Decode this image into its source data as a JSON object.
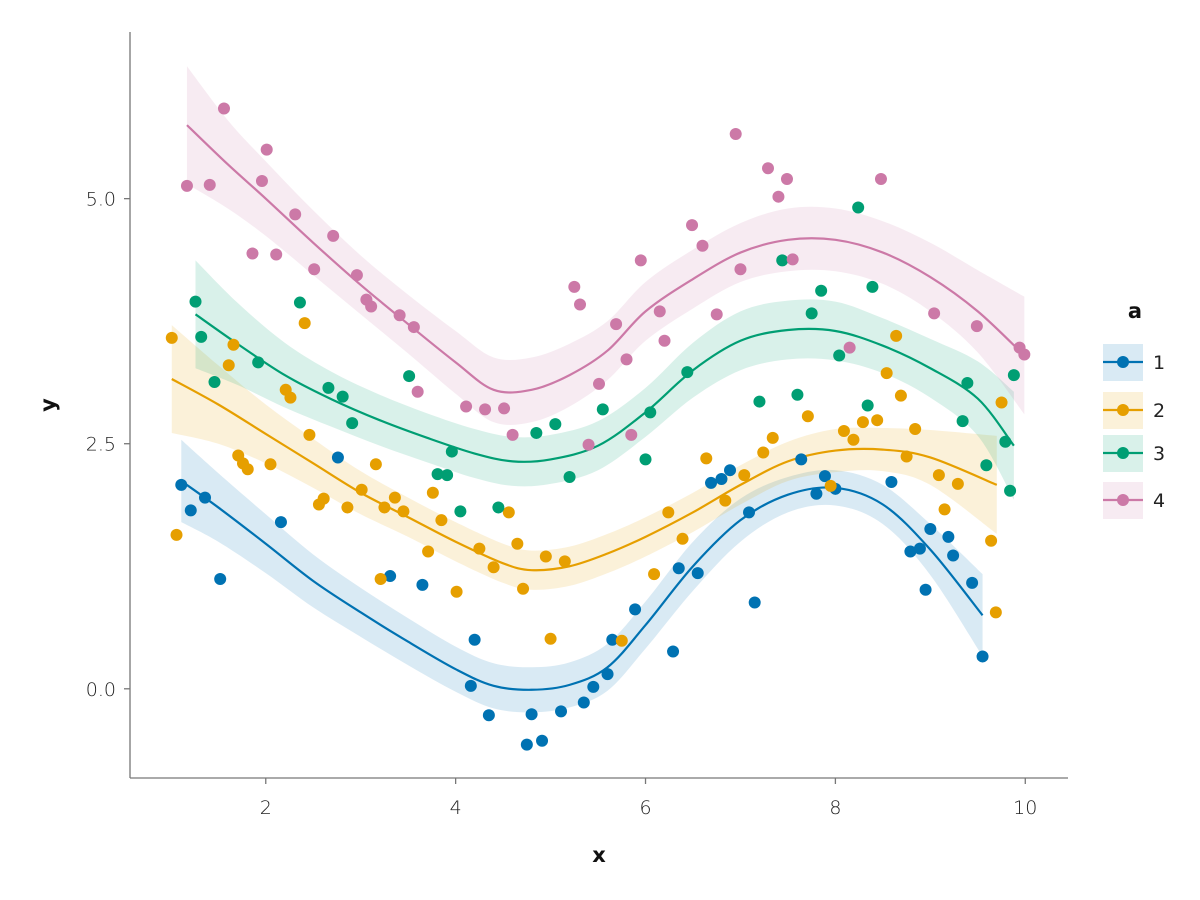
{
  "chart_data": {
    "type": "scatter",
    "title": "",
    "xlabel": "x",
    "ylabel": "y",
    "xlim": [
      0.57,
      10.45
    ],
    "ylim": [
      -0.91,
      6.7
    ],
    "xticks": [
      2,
      4,
      6,
      8,
      10
    ],
    "xtick_labels": [
      "2",
      "4",
      "6",
      "8",
      "10"
    ],
    "yticks": [
      0,
      2.5,
      5
    ],
    "ytick_labels": [
      "0.0",
      "2.5",
      "5.0"
    ],
    "grid": false,
    "legend": {
      "title": "a",
      "placement": "right"
    },
    "series": [
      {
        "name": "1",
        "color": "#0072B2",
        "points": [
          [
            1.11,
            2.08
          ],
          [
            1.21,
            1.82
          ],
          [
            1.36,
            1.95
          ],
          [
            1.52,
            1.12
          ],
          [
            2.16,
            1.7
          ],
          [
            2.76,
            2.36
          ],
          [
            3.31,
            1.15
          ],
          [
            3.65,
            1.06
          ],
          [
            4.16,
            0.03
          ],
          [
            4.2,
            0.5
          ],
          [
            4.35,
            -0.27
          ],
          [
            4.75,
            -0.57
          ],
          [
            4.8,
            -0.26
          ],
          [
            4.91,
            -0.53
          ],
          [
            5.11,
            -0.23
          ],
          [
            5.35,
            -0.14
          ],
          [
            5.45,
            0.02
          ],
          [
            5.6,
            0.15
          ],
          [
            5.65,
            0.5
          ],
          [
            5.89,
            0.81
          ],
          [
            6.29,
            0.38
          ],
          [
            6.35,
            1.23
          ],
          [
            6.55,
            1.18
          ],
          [
            6.69,
            2.1
          ],
          [
            6.8,
            2.14
          ],
          [
            6.89,
            2.23
          ],
          [
            7.09,
            1.8
          ],
          [
            7.15,
            0.88
          ],
          [
            7.64,
            2.34
          ],
          [
            7.8,
            1.99
          ],
          [
            7.89,
            2.17
          ],
          [
            8.0,
            2.04
          ],
          [
            8.59,
            2.11
          ],
          [
            8.79,
            1.4
          ],
          [
            8.89,
            1.43
          ],
          [
            8.95,
            1.01
          ],
          [
            9.0,
            1.63
          ],
          [
            9.19,
            1.55
          ],
          [
            9.24,
            1.36
          ],
          [
            9.44,
            1.08
          ],
          [
            9.55,
            0.33
          ]
        ],
        "smooth": [
          [
            1.11,
            2.12
          ],
          [
            1.5,
            1.85
          ],
          [
            2,
            1.48
          ],
          [
            2.5,
            1.1
          ],
          [
            3,
            0.78
          ],
          [
            3.5,
            0.48
          ],
          [
            4,
            0.2
          ],
          [
            4.4,
            0.03
          ],
          [
            4.8,
            -0.01
          ],
          [
            5.2,
            0.04
          ],
          [
            5.6,
            0.22
          ],
          [
            6,
            0.65
          ],
          [
            6.5,
            1.25
          ],
          [
            7,
            1.72
          ],
          [
            7.5,
            1.98
          ],
          [
            8,
            2.05
          ],
          [
            8.5,
            1.88
          ],
          [
            9,
            1.42
          ],
          [
            9.55,
            0.75
          ]
        ],
        "ci": [
          0.42,
          0.35,
          0.3,
          0.27,
          0.25,
          0.24,
          0.23,
          0.23,
          0.23,
          0.23,
          0.24,
          0.24,
          0.25,
          0.22,
          0.18,
          0.18,
          0.2,
          0.26,
          0.42
        ]
      },
      {
        "name": "2",
        "color": "#E69F00",
        "points": [
          [
            1.01,
            3.58
          ],
          [
            1.06,
            1.57
          ],
          [
            1.61,
            3.3
          ],
          [
            1.66,
            3.51
          ],
          [
            1.71,
            2.38
          ],
          [
            1.76,
            2.3
          ],
          [
            1.81,
            2.24
          ],
          [
            2.05,
            2.29
          ],
          [
            2.21,
            3.05
          ],
          [
            2.26,
            2.97
          ],
          [
            2.41,
            3.73
          ],
          [
            2.46,
            2.59
          ],
          [
            2.56,
            1.88
          ],
          [
            2.61,
            1.94
          ],
          [
            2.86,
            1.85
          ],
          [
            3.01,
            2.03
          ],
          [
            3.16,
            2.29
          ],
          [
            3.21,
            1.12
          ],
          [
            3.25,
            1.85
          ],
          [
            3.36,
            1.95
          ],
          [
            3.45,
            1.81
          ],
          [
            3.71,
            1.4
          ],
          [
            3.76,
            2.0
          ],
          [
            3.85,
            1.72
          ],
          [
            4.01,
            0.99
          ],
          [
            4.25,
            1.43
          ],
          [
            4.4,
            1.24
          ],
          [
            4.56,
            1.8
          ],
          [
            4.65,
            1.48
          ],
          [
            4.71,
            1.02
          ],
          [
            4.95,
            1.35
          ],
          [
            5.0,
            0.51
          ],
          [
            5.15,
            1.3
          ],
          [
            5.75,
            0.49
          ],
          [
            6.09,
            1.17
          ],
          [
            6.24,
            1.8
          ],
          [
            6.39,
            1.53
          ],
          [
            6.64,
            2.35
          ],
          [
            6.84,
            1.92
          ],
          [
            7.04,
            2.18
          ],
          [
            7.24,
            2.41
          ],
          [
            7.34,
            2.56
          ],
          [
            7.71,
            2.78
          ],
          [
            7.95,
            2.07
          ],
          [
            8.09,
            2.63
          ],
          [
            8.19,
            2.54
          ],
          [
            8.29,
            2.72
          ],
          [
            8.44,
            2.74
          ],
          [
            8.54,
            3.22
          ],
          [
            8.64,
            3.6
          ],
          [
            8.69,
            2.99
          ],
          [
            8.75,
            2.37
          ],
          [
            8.84,
            2.65
          ],
          [
            9.09,
            2.18
          ],
          [
            9.15,
            1.83
          ],
          [
            9.29,
            2.09
          ],
          [
            9.64,
            1.51
          ],
          [
            9.69,
            0.78
          ],
          [
            9.75,
            2.92
          ]
        ],
        "smooth": [
          [
            1.01,
            3.16
          ],
          [
            1.5,
            2.9
          ],
          [
            2,
            2.6
          ],
          [
            2.5,
            2.3
          ],
          [
            3,
            2.0
          ],
          [
            3.5,
            1.75
          ],
          [
            4,
            1.5
          ],
          [
            4.5,
            1.28
          ],
          [
            4.8,
            1.21
          ],
          [
            5.2,
            1.25
          ],
          [
            5.6,
            1.38
          ],
          [
            6,
            1.55
          ],
          [
            6.5,
            1.8
          ],
          [
            7,
            2.08
          ],
          [
            7.5,
            2.32
          ],
          [
            8,
            2.43
          ],
          [
            8.5,
            2.44
          ],
          [
            9,
            2.36
          ],
          [
            9.7,
            2.08
          ]
        ],
        "ci": [
          0.55,
          0.4,
          0.3,
          0.25,
          0.22,
          0.2,
          0.2,
          0.2,
          0.2,
          0.2,
          0.2,
          0.2,
          0.2,
          0.2,
          0.2,
          0.22,
          0.22,
          0.28,
          0.5
        ]
      },
      {
        "name": "3",
        "color": "#009E73",
        "points": [
          [
            1.26,
            3.95
          ],
          [
            1.32,
            3.59
          ],
          [
            1.46,
            3.13
          ],
          [
            1.92,
            3.33
          ],
          [
            2.36,
            3.94
          ],
          [
            2.66,
            3.07
          ],
          [
            2.81,
            2.98
          ],
          [
            2.91,
            2.71
          ],
          [
            3.51,
            3.19
          ],
          [
            3.81,
            2.19
          ],
          [
            3.91,
            2.18
          ],
          [
            3.96,
            2.42
          ],
          [
            4.05,
            1.81
          ],
          [
            4.45,
            1.85
          ],
          [
            4.85,
            2.61
          ],
          [
            5.05,
            2.7
          ],
          [
            5.2,
            2.16
          ],
          [
            5.55,
            2.85
          ],
          [
            6.0,
            2.34
          ],
          [
            6.05,
            2.82
          ],
          [
            6.44,
            3.23
          ],
          [
            7.2,
            2.93
          ],
          [
            7.44,
            4.37
          ],
          [
            7.6,
            3.0
          ],
          [
            7.75,
            3.83
          ],
          [
            7.85,
            4.06
          ],
          [
            8.04,
            3.4
          ],
          [
            8.24,
            4.91
          ],
          [
            8.34,
            2.89
          ],
          [
            8.39,
            4.1
          ],
          [
            9.34,
            2.73
          ],
          [
            9.39,
            3.12
          ],
          [
            9.59,
            2.28
          ],
          [
            9.79,
            2.52
          ],
          [
            9.84,
            2.02
          ],
          [
            9.88,
            3.2
          ]
        ],
        "smooth": [
          [
            1.26,
            3.82
          ],
          [
            1.7,
            3.52
          ],
          [
            2.2,
            3.2
          ],
          [
            2.7,
            2.95
          ],
          [
            3.2,
            2.74
          ],
          [
            3.7,
            2.56
          ],
          [
            4.2,
            2.4
          ],
          [
            4.6,
            2.32
          ],
          [
            5,
            2.34
          ],
          [
            5.5,
            2.48
          ],
          [
            6,
            2.82
          ],
          [
            6.5,
            3.25
          ],
          [
            7,
            3.55
          ],
          [
            7.5,
            3.66
          ],
          [
            8,
            3.65
          ],
          [
            8.5,
            3.5
          ],
          [
            9,
            3.27
          ],
          [
            9.5,
            2.96
          ],
          [
            9.88,
            2.48
          ]
        ],
        "ci": [
          0.55,
          0.42,
          0.33,
          0.28,
          0.26,
          0.25,
          0.25,
          0.25,
          0.25,
          0.25,
          0.25,
          0.28,
          0.3,
          0.3,
          0.3,
          0.28,
          0.3,
          0.38,
          0.55
        ]
      },
      {
        "name": "4",
        "color": "#CC79A7",
        "points": [
          [
            1.17,
            5.13
          ],
          [
            1.41,
            5.14
          ],
          [
            1.56,
            5.92
          ],
          [
            1.86,
            4.44
          ],
          [
            1.96,
            5.18
          ],
          [
            2.01,
            5.5
          ],
          [
            2.11,
            4.43
          ],
          [
            2.31,
            4.84
          ],
          [
            2.51,
            4.28
          ],
          [
            2.71,
            4.62
          ],
          [
            2.96,
            4.22
          ],
          [
            3.06,
            3.97
          ],
          [
            3.11,
            3.9
          ],
          [
            3.41,
            3.81
          ],
          [
            3.56,
            3.69
          ],
          [
            3.6,
            3.03
          ],
          [
            4.11,
            2.88
          ],
          [
            4.31,
            2.85
          ],
          [
            4.51,
            2.86
          ],
          [
            4.6,
            2.59
          ],
          [
            5.25,
            4.1
          ],
          [
            5.31,
            3.92
          ],
          [
            5.4,
            2.49
          ],
          [
            5.51,
            3.11
          ],
          [
            5.69,
            3.72
          ],
          [
            5.8,
            3.36
          ],
          [
            5.85,
            2.59
          ],
          [
            5.95,
            4.37
          ],
          [
            6.15,
            3.85
          ],
          [
            6.2,
            3.55
          ],
          [
            6.49,
            4.73
          ],
          [
            6.6,
            4.52
          ],
          [
            6.75,
            3.82
          ],
          [
            6.95,
            5.66
          ],
          [
            7.0,
            4.28
          ],
          [
            7.29,
            5.31
          ],
          [
            7.4,
            5.02
          ],
          [
            7.49,
            5.2
          ],
          [
            7.55,
            4.38
          ],
          [
            8.15,
            3.48
          ],
          [
            8.48,
            5.2
          ],
          [
            9.04,
            3.83
          ],
          [
            9.49,
            3.7
          ],
          [
            9.94,
            3.48
          ],
          [
            9.99,
            3.41
          ]
        ],
        "smooth": [
          [
            1.17,
            5.75
          ],
          [
            1.6,
            5.35
          ],
          [
            2,
            5.0
          ],
          [
            2.5,
            4.55
          ],
          [
            3,
            4.12
          ],
          [
            3.5,
            3.72
          ],
          [
            4,
            3.33
          ],
          [
            4.4,
            3.05
          ],
          [
            4.8,
            3.05
          ],
          [
            5.2,
            3.2
          ],
          [
            5.6,
            3.45
          ],
          [
            6,
            3.85
          ],
          [
            6.5,
            4.18
          ],
          [
            7,
            4.45
          ],
          [
            7.5,
            4.58
          ],
          [
            8,
            4.58
          ],
          [
            8.5,
            4.45
          ],
          [
            9,
            4.2
          ],
          [
            9.5,
            3.85
          ],
          [
            9.99,
            3.4
          ]
        ],
        "ci": [
          0.6,
          0.45,
          0.38,
          0.33,
          0.3,
          0.3,
          0.32,
          0.33,
          0.33,
          0.32,
          0.3,
          0.3,
          0.3,
          0.3,
          0.32,
          0.32,
          0.32,
          0.35,
          0.42,
          0.6
        ]
      }
    ]
  }
}
